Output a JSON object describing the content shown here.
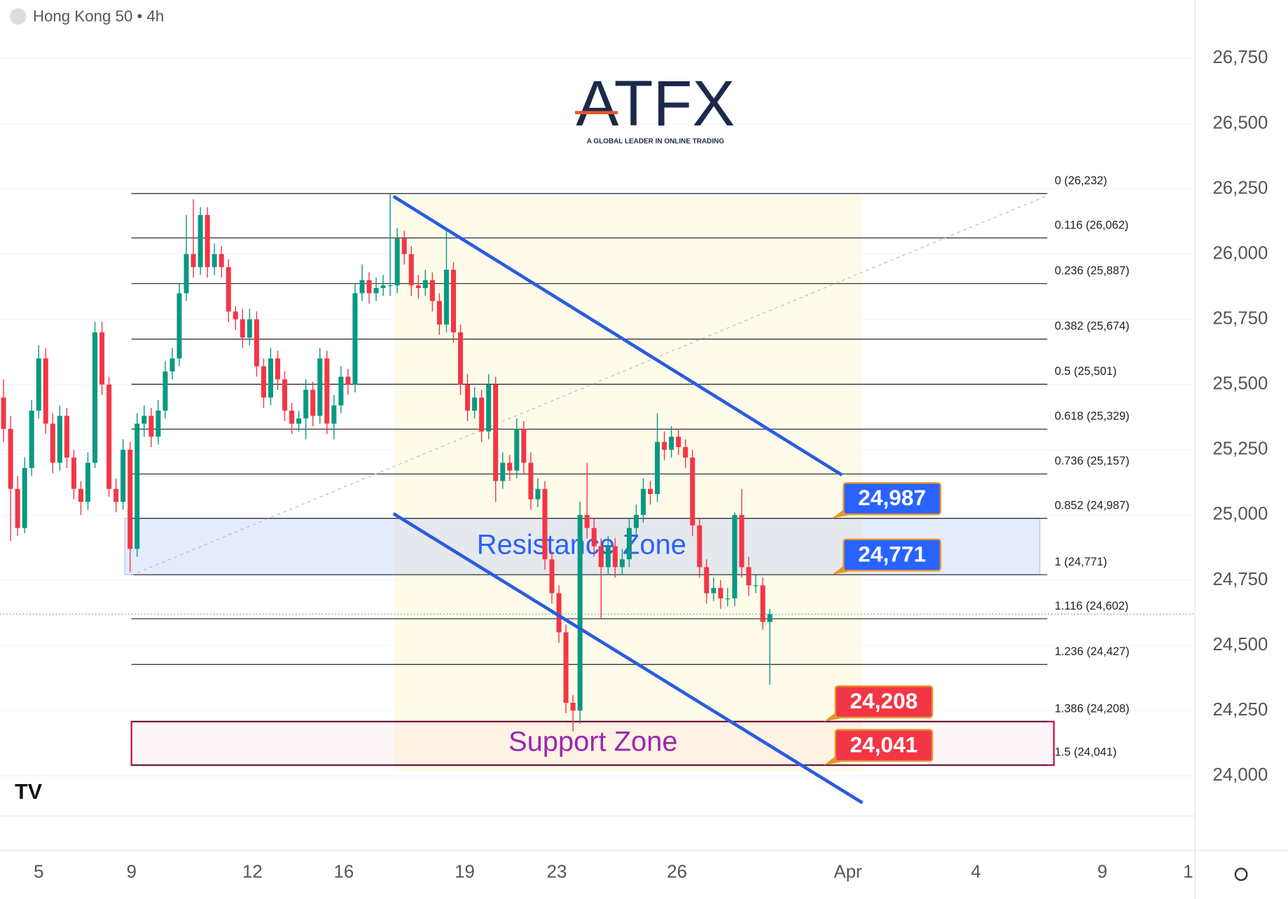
{
  "header": {
    "title": "Hong Kong 50 • 4h"
  },
  "brand": {
    "name": "ATFX",
    "tagline": "A GLOBAL LEADER IN ONLINE TRADING"
  },
  "chart_data": {
    "type": "candlestick",
    "up_color": "#089981",
    "down_color": "#f23645",
    "xlim": [
      0,
      170
    ],
    "ylim": [
      23846,
      26974
    ],
    "grid": true,
    "yticks": [
      {
        "value": 24000,
        "label": "24,000"
      },
      {
        "value": 24250,
        "label": "24,250"
      },
      {
        "value": 24500,
        "label": "24,500"
      },
      {
        "value": 24750,
        "label": "24,750"
      },
      {
        "value": 25000,
        "label": "25,000"
      },
      {
        "value": 25250,
        "label": "25,250"
      },
      {
        "value": 25500,
        "label": "25,500"
      },
      {
        "value": 25750,
        "label": "25,750"
      },
      {
        "value": 26000,
        "label": "26,000"
      },
      {
        "value": 26250,
        "label": "26,250"
      },
      {
        "value": 26500,
        "label": "26,500"
      },
      {
        "value": 26750,
        "label": "26,750"
      }
    ],
    "xticks": [
      {
        "value": 5.5,
        "label": "5"
      },
      {
        "value": 18.7,
        "label": "9"
      },
      {
        "value": 35.9,
        "label": "12"
      },
      {
        "value": 48.9,
        "label": "16"
      },
      {
        "value": 66.1,
        "label": "19"
      },
      {
        "value": 79.2,
        "label": "23"
      },
      {
        "value": 96.3,
        "label": "26"
      },
      {
        "value": 120.6,
        "label": "Apr"
      },
      {
        "value": 138.8,
        "label": "4"
      },
      {
        "value": 156.8,
        "label": "9"
      },
      {
        "value": 169,
        "label": "1"
      }
    ],
    "candles": [
      [
        0.5,
        25450,
        25520,
        25280,
        25330
      ],
      [
        1.5,
        25330,
        25380,
        24900,
        25100
      ],
      [
        2.5,
        25100,
        25150,
        24920,
        24950
      ],
      [
        3.5,
        24950,
        25220,
        24930,
        25180
      ],
      [
        4.5,
        25180,
        25440,
        25150,
        25400
      ],
      [
        5.5,
        25400,
        25650,
        25370,
        25600
      ],
      [
        6.5,
        25600,
        25640,
        25310,
        25350
      ],
      [
        7.5,
        25350,
        25390,
        25160,
        25200
      ],
      [
        8.5,
        25200,
        25420,
        25170,
        25380
      ],
      [
        9.5,
        25380,
        25410,
        25180,
        25220
      ],
      [
        10.5,
        25220,
        25250,
        25060,
        25100
      ],
      [
        11.5,
        25100,
        25130,
        25000,
        25050
      ],
      [
        12.5,
        25050,
        25240,
        25020,
        25200
      ],
      [
        13.5,
        25200,
        25740,
        25180,
        25700
      ],
      [
        14.5,
        25700,
        25740,
        25460,
        25500
      ],
      [
        15.5,
        25500,
        25530,
        25070,
        25100
      ],
      [
        16.5,
        25100,
        25140,
        25010,
        25050
      ],
      [
        17.5,
        25050,
        25290,
        25020,
        25250
      ],
      [
        18.5,
        25250,
        25280,
        24780,
        24870
      ],
      [
        19.5,
        24870,
        25390,
        24840,
        25350
      ],
      [
        20.5,
        25350,
        25420,
        25300,
        25380
      ],
      [
        21.5,
        25380,
        25410,
        25260,
        25300
      ],
      [
        22.5,
        25300,
        25440,
        25270,
        25400
      ],
      [
        23.5,
        25400,
        25590,
        25370,
        25550
      ],
      [
        24.5,
        25550,
        25640,
        25520,
        25600
      ],
      [
        25.5,
        25600,
        25890,
        25570,
        25850
      ],
      [
        26.5,
        25850,
        26150,
        25820,
        26000
      ],
      [
        27.5,
        26000,
        26210,
        25910,
        25950
      ],
      [
        28.5,
        25950,
        26180,
        25920,
        26150
      ],
      [
        29.5,
        26150,
        26180,
        25910,
        25950
      ],
      [
        30.5,
        25950,
        26040,
        25920,
        26000
      ],
      [
        31.5,
        26000,
        26030,
        25910,
        25950
      ],
      [
        32.5,
        25950,
        25980,
        25740,
        25780
      ],
      [
        33.5,
        25780,
        25800,
        25710,
        25750
      ],
      [
        34.5,
        25750,
        25790,
        25640,
        25680
      ],
      [
        35.5,
        25680,
        25790,
        25650,
        25750
      ],
      [
        36.5,
        25750,
        25780,
        25530,
        25570
      ],
      [
        37.5,
        25570,
        25600,
        25410,
        25450
      ],
      [
        38.5,
        25450,
        25640,
        25420,
        25600
      ],
      [
        39.5,
        25600,
        25630,
        25480,
        25520
      ],
      [
        40.5,
        25520,
        25550,
        25360,
        25400
      ],
      [
        41.5,
        25400,
        25430,
        25310,
        25350
      ],
      [
        42.5,
        25350,
        25400,
        25320,
        25370
      ],
      [
        43.5,
        25370,
        25520,
        25290,
        25480
      ],
      [
        44.5,
        25480,
        25510,
        25340,
        25380
      ],
      [
        45.5,
        25380,
        25640,
        25350,
        25600
      ],
      [
        46.5,
        25600,
        25630,
        25310,
        25350
      ],
      [
        47.5,
        25350,
        25460,
        25290,
        25420
      ],
      [
        48.5,
        25420,
        25570,
        25390,
        25530
      ],
      [
        49.5,
        25530,
        25560,
        25460,
        25500
      ],
      [
        50.5,
        25500,
        25890,
        25470,
        25850
      ],
      [
        51.5,
        25850,
        25960,
        25820,
        25900
      ],
      [
        52.5,
        25900,
        25930,
        25810,
        25850
      ],
      [
        53.5,
        25850,
        25910,
        25820,
        25870
      ],
      [
        54.5,
        25870,
        25920,
        25840,
        25880
      ],
      [
        55.5,
        25880,
        26230,
        25840,
        25880
      ],
      [
        56.5,
        25880,
        26100,
        25850,
        26060
      ],
      [
        57.5,
        26060,
        26090,
        25960,
        26000
      ],
      [
        58.5,
        26000,
        26030,
        25840,
        25880
      ],
      [
        59.5,
        25880,
        25920,
        25830,
        25870
      ],
      [
        60.5,
        25870,
        25940,
        25840,
        25900
      ],
      [
        61.5,
        25900,
        25930,
        25780,
        25820
      ],
      [
        62.5,
        25820,
        25850,
        25690,
        25730
      ],
      [
        63.5,
        25730,
        26100,
        25700,
        25940
      ],
      [
        64.5,
        25940,
        25970,
        25660,
        25700
      ],
      [
        65.5,
        25700,
        25730,
        25460,
        25500
      ],
      [
        66.5,
        25500,
        25540,
        25360,
        25400
      ],
      [
        67.5,
        25400,
        25490,
        25370,
        25450
      ],
      [
        68.5,
        25450,
        25480,
        25280,
        25320
      ],
      [
        69.5,
        25320,
        25540,
        25290,
        25500
      ],
      [
        70.5,
        25500,
        25530,
        25050,
        25130
      ],
      [
        71.5,
        25130,
        25240,
        25100,
        25200
      ],
      [
        72.5,
        25200,
        25230,
        25130,
        25170
      ],
      [
        73.5,
        25170,
        25370,
        25140,
        25330
      ],
      [
        74.5,
        25330,
        25360,
        25160,
        25200
      ],
      [
        75.5,
        25200,
        25240,
        25020,
        25060
      ],
      [
        76.5,
        25060,
        25140,
        25030,
        25100
      ],
      [
        77.5,
        25100,
        25130,
        24790,
        24830
      ],
      [
        78.5,
        24830,
        24860,
        24660,
        24700
      ],
      [
        79.5,
        24700,
        24730,
        24510,
        24550
      ],
      [
        80.5,
        24550,
        24580,
        24240,
        24280
      ],
      [
        81.5,
        24280,
        24310,
        24170,
        24250
      ],
      [
        82.5,
        24250,
        25050,
        24200,
        25000
      ],
      [
        83.5,
        25000,
        25200,
        24910,
        24950
      ],
      [
        84.5,
        24950,
        24990,
        24840,
        24880
      ],
      [
        85.5,
        24880,
        24910,
        24600,
        24800
      ],
      [
        86.5,
        24800,
        24920,
        24770,
        24880
      ],
      [
        87.5,
        24880,
        24910,
        24760,
        24800
      ],
      [
        88.5,
        24800,
        24870,
        24770,
        24830
      ],
      [
        89.5,
        24830,
        24990,
        24800,
        24950
      ],
      [
        90.5,
        24950,
        25040,
        24920,
        25000
      ],
      [
        91.5,
        25000,
        25140,
        24970,
        25100
      ],
      [
        92.5,
        25100,
        25130,
        25040,
        25080
      ],
      [
        93.5,
        25080,
        25390,
        25050,
        25280
      ],
      [
        94.5,
        25280,
        25320,
        25210,
        25250
      ],
      [
        95.5,
        25250,
        25340,
        25220,
        25300
      ],
      [
        96.5,
        25300,
        25330,
        25230,
        25260
      ],
      [
        97.5,
        25260,
        25290,
        25180,
        25220
      ],
      [
        98.5,
        25220,
        25250,
        24920,
        24960
      ],
      [
        99.5,
        24960,
        24990,
        24760,
        24800
      ],
      [
        100.5,
        24800,
        24830,
        24660,
        24700
      ],
      [
        101.5,
        24700,
        24760,
        24670,
        24720
      ],
      [
        102.5,
        24720,
        24750,
        24640,
        24680
      ],
      [
        103.5,
        24680,
        24720,
        24650,
        24680
      ],
      [
        104.5,
        24680,
        25010,
        24650,
        25000
      ],
      [
        105.5,
        25000,
        25100,
        24760,
        24800
      ],
      [
        106.5,
        24800,
        24840,
        24690,
        24730
      ],
      [
        107.5,
        24730,
        24770,
        24700,
        24730
      ],
      [
        108.5,
        24730,
        24760,
        24560,
        24590
      ],
      [
        109.5,
        24590,
        24640,
        24350,
        24620
      ]
    ],
    "fib_levels": [
      {
        "value": 26232,
        "label": "0 (26,232)"
      },
      {
        "value": 26062,
        "label": "0.116 (26,062)"
      },
      {
        "value": 25887,
        "label": "0.236 (25,887)"
      },
      {
        "value": 25674,
        "label": "0.382 (25,674)"
      },
      {
        "value": 25501,
        "label": "0.5 (25,501)"
      },
      {
        "value": 25329,
        "label": "0.618 (25,329)"
      },
      {
        "value": 25157,
        "label": "0.736 (25,157)"
      },
      {
        "value": 24987,
        "label": "0.852 (24,987)"
      },
      {
        "value": 24771,
        "label": "1 (24,771)"
      },
      {
        "value": 24602,
        "label": "1.116 (24,602)"
      },
      {
        "value": 24427,
        "label": "1.236 (24,427)"
      },
      {
        "value": 24208,
        "label": "1.386 (24,208)"
      },
      {
        "value": 24041,
        "label": "1.5 (24,041)"
      }
    ],
    "zones": [
      {
        "label": "Resistance Zone",
        "range": [
          24771,
          24987
        ],
        "color": "#2962ff"
      },
      {
        "label": "Support Zone",
        "range": [
          24041,
          24208
        ],
        "color": "#c2185b"
      }
    ],
    "price_tags": [
      {
        "value": 24987,
        "label": "24,987",
        "color": "#2962ff"
      },
      {
        "value": 24771,
        "label": "24,771",
        "color": "#2962ff"
      },
      {
        "value": 24208,
        "label": "24,208",
        "color": "#f23645"
      },
      {
        "value": 24041,
        "label": "24,041",
        "color": "#f23645"
      }
    ]
  }
}
